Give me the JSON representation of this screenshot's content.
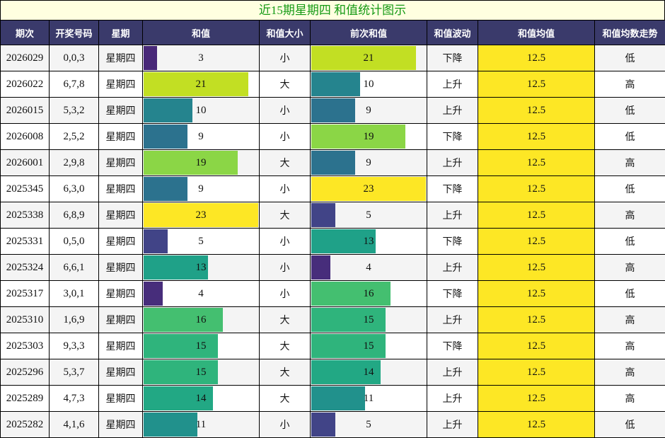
{
  "title": "近15期星期四 和值统计图示",
  "headers": [
    "期次",
    "开奖号码",
    "星期",
    "和值",
    "和值大小",
    "前次和值",
    "和值波动",
    "和值均值",
    "和值均数走势"
  ],
  "max_sum": 23,
  "rows": [
    {
      "period": "2026029",
      "numbers": "0,0,3",
      "weekday": "星期四",
      "sum": "3",
      "sum_color": "#482878",
      "size": "小",
      "prev_sum": "21",
      "prev_color": "#c2df23",
      "trend": "下降",
      "avg": "12.5",
      "avg_trend": "低"
    },
    {
      "period": "2026022",
      "numbers": "6,7,8",
      "weekday": "星期四",
      "sum": "21",
      "sum_color": "#c2df23",
      "size": "大",
      "prev_sum": "10",
      "prev_color": "#25848e",
      "trend": "上升",
      "avg": "12.5",
      "avg_trend": "高"
    },
    {
      "period": "2026015",
      "numbers": "5,3,2",
      "weekday": "星期四",
      "sum": "10",
      "sum_color": "#25848e",
      "size": "小",
      "prev_sum": "9",
      "prev_color": "#2c728e",
      "trend": "上升",
      "avg": "12.5",
      "avg_trend": "低"
    },
    {
      "period": "2026008",
      "numbers": "2,5,2",
      "weekday": "星期四",
      "sum": "9",
      "sum_color": "#2c728e",
      "size": "小",
      "prev_sum": "19",
      "prev_color": "#8bd646",
      "trend": "下降",
      "avg": "12.5",
      "avg_trend": "低"
    },
    {
      "period": "2026001",
      "numbers": "2,9,8",
      "weekday": "星期四",
      "sum": "19",
      "sum_color": "#8bd646",
      "size": "大",
      "prev_sum": "9",
      "prev_color": "#2c728e",
      "trend": "上升",
      "avg": "12.5",
      "avg_trend": "高"
    },
    {
      "period": "2025345",
      "numbers": "6,3,0",
      "weekday": "星期四",
      "sum": "9",
      "sum_color": "#2c728e",
      "size": "小",
      "prev_sum": "23",
      "prev_color": "#fde725",
      "trend": "下降",
      "avg": "12.5",
      "avg_trend": "低"
    },
    {
      "period": "2025338",
      "numbers": "6,8,9",
      "weekday": "星期四",
      "sum": "23",
      "sum_color": "#fde725",
      "size": "大",
      "prev_sum": "5",
      "prev_color": "#414487",
      "trend": "上升",
      "avg": "12.5",
      "avg_trend": "高"
    },
    {
      "period": "2025331",
      "numbers": "0,5,0",
      "weekday": "星期四",
      "sum": "5",
      "sum_color": "#414487",
      "size": "小",
      "prev_sum": "13",
      "prev_color": "#1fa188",
      "trend": "下降",
      "avg": "12.5",
      "avg_trend": "低"
    },
    {
      "period": "2025324",
      "numbers": "6,6,1",
      "weekday": "星期四",
      "sum": "13",
      "sum_color": "#1fa188",
      "size": "小",
      "prev_sum": "4",
      "prev_color": "#472d7b",
      "trend": "上升",
      "avg": "12.5",
      "avg_trend": "高"
    },
    {
      "period": "2025317",
      "numbers": "3,0,1",
      "weekday": "星期四",
      "sum": "4",
      "sum_color": "#472d7b",
      "size": "小",
      "prev_sum": "16",
      "prev_color": "#44bf70",
      "trend": "下降",
      "avg": "12.5",
      "avg_trend": "低"
    },
    {
      "period": "2025310",
      "numbers": "1,6,9",
      "weekday": "星期四",
      "sum": "16",
      "sum_color": "#44bf70",
      "size": "大",
      "prev_sum": "15",
      "prev_color": "#2fb47c",
      "trend": "上升",
      "avg": "12.5",
      "avg_trend": "高"
    },
    {
      "period": "2025303",
      "numbers": "9,3,3",
      "weekday": "星期四",
      "sum": "15",
      "sum_color": "#2fb47c",
      "size": "大",
      "prev_sum": "15",
      "prev_color": "#2fb47c",
      "trend": "下降",
      "avg": "12.5",
      "avg_trend": "高"
    },
    {
      "period": "2025296",
      "numbers": "5,3,7",
      "weekday": "星期四",
      "sum": "15",
      "sum_color": "#2fb47c",
      "size": "大",
      "prev_sum": "14",
      "prev_color": "#22a884",
      "trend": "上升",
      "avg": "12.5",
      "avg_trend": "高"
    },
    {
      "period": "2025289",
      "numbers": "4,7,3",
      "weekday": "星期四",
      "sum": "14",
      "sum_color": "#22a884",
      "size": "大",
      "prev_sum": "11",
      "prev_color": "#21918c",
      "trend": "上升",
      "avg": "12.5",
      "avg_trend": "高"
    },
    {
      "period": "2025282",
      "numbers": "4,1,6",
      "weekday": "星期四",
      "sum": "11",
      "sum_color": "#21918c",
      "size": "小",
      "prev_sum": "5",
      "prev_color": "#414487",
      "trend": "上升",
      "avg": "12.5",
      "avg_trend": "低"
    }
  ],
  "chart_data": {
    "type": "table",
    "title": "近15期星期四 和值统计图示",
    "columns": [
      "期次",
      "开奖号码",
      "星期",
      "和值",
      "和值大小",
      "前次和值",
      "和值波动",
      "和值均值",
      "和值均数走势"
    ],
    "categories": [
      "2026029",
      "2026022",
      "2026015",
      "2026008",
      "2026001",
      "2025345",
      "2025338",
      "2025331",
      "2025324",
      "2025317",
      "2025310",
      "2025303",
      "2025296",
      "2025289",
      "2025282"
    ],
    "series": [
      {
        "name": "和值",
        "values": [
          3,
          21,
          10,
          9,
          19,
          9,
          23,
          5,
          13,
          4,
          16,
          15,
          15,
          14,
          11
        ]
      },
      {
        "name": "前次和值",
        "values": [
          21,
          10,
          9,
          19,
          9,
          23,
          5,
          13,
          4,
          16,
          15,
          15,
          14,
          11,
          5
        ]
      },
      {
        "name": "和值均值",
        "values": [
          12.5,
          12.5,
          12.5,
          12.5,
          12.5,
          12.5,
          12.5,
          12.5,
          12.5,
          12.5,
          12.5,
          12.5,
          12.5,
          12.5,
          12.5
        ]
      }
    ],
    "numbers": [
      "0,0,3",
      "6,7,8",
      "5,3,2",
      "2,5,2",
      "2,9,8",
      "6,3,0",
      "6,8,9",
      "0,5,0",
      "6,6,1",
      "3,0,1",
      "1,6,9",
      "9,3,3",
      "5,3,7",
      "4,7,3",
      "4,1,6"
    ],
    "size": [
      "小",
      "大",
      "小",
      "小",
      "大",
      "小",
      "大",
      "小",
      "小",
      "小",
      "大",
      "大",
      "大",
      "大",
      "小"
    ],
    "trend": [
      "下降",
      "上升",
      "上升",
      "下降",
      "上升",
      "下降",
      "上升",
      "下降",
      "上升",
      "下降",
      "上升",
      "下降",
      "上升",
      "上升",
      "上升"
    ],
    "avg_trend": [
      "低",
      "高",
      "低",
      "低",
      "高",
      "低",
      "高",
      "低",
      "高",
      "低",
      "高",
      "高",
      "高",
      "高",
      "低"
    ],
    "bar_scale_max": 23
  }
}
